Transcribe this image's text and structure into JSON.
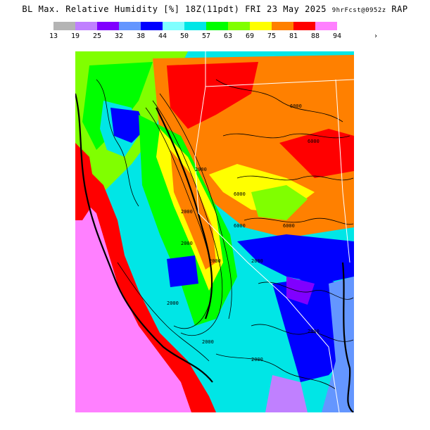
{
  "title": {
    "main": "BL Max. Relative Humidity [%] 18Z(11pdt) FRI 23 May 2025",
    "forecast": "9hrFcst@0952z",
    "model": "RAP"
  },
  "legend": {
    "ticks": [
      "13",
      "19",
      "25",
      "32",
      "38",
      "44",
      "50",
      "57",
      "63",
      "69",
      "75",
      "81",
      "88",
      "94"
    ],
    "more_symbol": "›",
    "colors": [
      "#b4b4b4",
      "#c080ff",
      "#8000ff",
      "#6496ff",
      "#0000ff",
      "#80ffff",
      "#00e6e6",
      "#00ff00",
      "#80ff00",
      "#ffff00",
      "#ff8000",
      "#ff0000",
      "#ff80ff"
    ]
  },
  "map": {
    "contour_labels": [
      "2000",
      "2000",
      "6000",
      "6000",
      "6000",
      "6000",
      "6000",
      "2000",
      "2000",
      "2000",
      "2000",
      "2000",
      "2000",
      "2000"
    ]
  }
}
